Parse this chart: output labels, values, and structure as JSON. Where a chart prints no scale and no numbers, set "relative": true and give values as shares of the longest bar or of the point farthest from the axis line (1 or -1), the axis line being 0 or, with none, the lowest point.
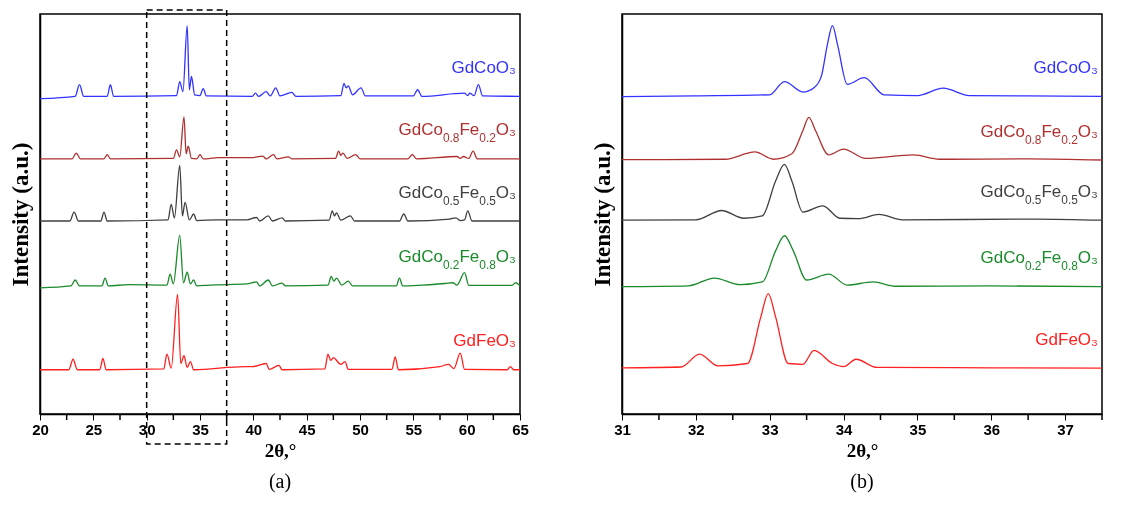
{
  "chart_data": [
    {
      "type": "line",
      "xlabel": "2θ,°",
      "ylabel": "Intensity (a.u.)",
      "relative": true,
      "annotations": [
        "(a)"
      ],
      "legend": false,
      "grid": false,
      "xlim": [
        20,
        65
      ],
      "xticks": [
        20,
        {
          "value": 22.5,
          "label": null
        },
        25,
        {
          "value": 27.5,
          "label": null
        },
        30,
        {
          "value": 32.5,
          "label": null
        },
        35,
        {
          "value": 37.5,
          "label": null
        },
        40,
        {
          "value": 42.5,
          "label": null
        },
        45,
        {
          "value": 47.5,
          "label": null
        },
        50,
        {
          "value": 52.5,
          "label": null
        },
        55,
        {
          "value": 57.5,
          "label": null
        },
        60,
        {
          "value": 62.5,
          "label": null
        },
        65
      ],
      "series": [
        {
          "name": "GdCoO₃",
          "color": "#3333ff",
          "x": [
            20,
            23.3,
            23.7,
            24.1,
            26.3,
            26.6,
            26.9,
            32.8,
            33.1,
            33.4,
            33.8,
            34.0,
            34.2,
            34.5,
            35.0,
            35.3,
            35.6,
            39.9,
            40.2,
            40.5,
            41.2,
            41.6,
            42.1,
            42.5,
            43.6,
            44.0,
            48.2,
            48.5,
            48.7,
            48.9,
            49.3,
            50.1,
            50.5,
            55.0,
            55.4,
            55.8,
            59.8,
            60.1,
            60.3,
            60.7,
            61.1,
            61.5,
            65
          ],
          "values": [
            0.812,
            0.818,
            0.848,
            0.818,
            0.818,
            0.848,
            0.818,
            0.82,
            0.856,
            0.83,
            1.0,
            0.835,
            0.869,
            0.822,
            0.82,
            0.838,
            0.819,
            0.818,
            0.826,
            0.818,
            0.83,
            0.819,
            0.84,
            0.819,
            0.828,
            0.818,
            0.82,
            0.851,
            0.84,
            0.845,
            0.822,
            0.84,
            0.819,
            0.819,
            0.835,
            0.818,
            0.826,
            0.82,
            0.826,
            0.82,
            0.848,
            0.819,
            0.818
          ]
        },
        {
          "name": "GdCo$_{0.8}$Fe$_{0.2}$O₃",
          "color": "#b03030",
          "x": [
            20,
            23.0,
            23.4,
            23.8,
            26.0,
            26.3,
            26.6,
            32.5,
            32.8,
            33.1,
            33.5,
            33.7,
            33.9,
            34.2,
            34.7,
            35.0,
            35.3,
            36.7,
            39.8,
            40.9,
            41.2,
            41.9,
            42.2,
            43.3,
            43.6,
            47.7,
            48.0,
            48.2,
            48.4,
            48.8,
            49.6,
            50.0,
            54.5,
            54.9,
            55.3,
            59.1,
            59.4,
            59.7,
            60.2,
            60.6,
            61.0,
            65
          ],
          "values": [
            0.657,
            0.657,
            0.672,
            0.657,
            0.657,
            0.668,
            0.657,
            0.658,
            0.68,
            0.662,
            0.765,
            0.67,
            0.69,
            0.658,
            0.657,
            0.668,
            0.657,
            0.66,
            0.66,
            0.664,
            0.657,
            0.668,
            0.657,
            0.662,
            0.657,
            0.658,
            0.677,
            0.666,
            0.672,
            0.658,
            0.668,
            0.657,
            0.657,
            0.668,
            0.657,
            0.663,
            0.658,
            0.663,
            0.658,
            0.677,
            0.657,
            0.657
          ]
        },
        {
          "name": "GdCo$_{0.5}$Fe$_{0.5}$O₃",
          "color": "#404040",
          "x": [
            20,
            22.8,
            23.2,
            23.6,
            25.7,
            26.0,
            26.3,
            32.0,
            32.3,
            32.6,
            33.1,
            33.35,
            33.6,
            34.0,
            34.4,
            34.7,
            36.6,
            39.4,
            40.3,
            40.6,
            41.4,
            41.8,
            42.7,
            43.0,
            47.1,
            47.4,
            47.6,
            47.8,
            48.2,
            49.1,
            49.5,
            53.7,
            54.1,
            54.5,
            58.4,
            59.0,
            59.4,
            59.8,
            60.1,
            60.5,
            65
          ],
          "values": [
            0.497,
            0.497,
            0.52,
            0.497,
            0.497,
            0.52,
            0.497,
            0.5,
            0.54,
            0.505,
            0.64,
            0.51,
            0.545,
            0.5,
            0.515,
            0.498,
            0.5,
            0.5,
            0.506,
            0.497,
            0.51,
            0.497,
            0.505,
            0.497,
            0.499,
            0.523,
            0.51,
            0.518,
            0.499,
            0.51,
            0.497,
            0.497,
            0.515,
            0.497,
            0.502,
            0.505,
            0.498,
            0.5,
            0.523,
            0.497,
            0.497
          ]
        },
        {
          "name": "GdCo$_{0.2}$Fe$_{0.8}$O₃",
          "color": "#1a8a2a",
          "x": [
            20,
            22.9,
            23.3,
            23.7,
            25.8,
            26.1,
            26.4,
            28.3,
            31.9,
            32.2,
            32.5,
            33.1,
            33.45,
            33.8,
            34.1,
            34.4,
            34.7,
            35.9,
            39.4,
            40.3,
            40.6,
            41.4,
            41.8,
            42.7,
            43.0,
            47.0,
            47.3,
            47.55,
            47.8,
            48.3,
            48.9,
            49.3,
            53.4,
            53.7,
            54.0,
            55.8,
            58.0,
            58.7,
            59.1,
            59.8,
            60.2,
            64.2,
            64.6,
            65
          ],
          "values": [
            0.325,
            0.33,
            0.345,
            0.33,
            0.33,
            0.35,
            0.33,
            0.333,
            0.332,
            0.36,
            0.335,
            0.46,
            0.338,
            0.365,
            0.335,
            0.345,
            0.33,
            0.332,
            0.335,
            0.34,
            0.33,
            0.345,
            0.33,
            0.337,
            0.33,
            0.332,
            0.354,
            0.342,
            0.35,
            0.332,
            0.342,
            0.33,
            0.33,
            0.35,
            0.33,
            0.332,
            0.336,
            0.338,
            0.332,
            0.364,
            0.331,
            0.331,
            0.338,
            0.33
          ]
        },
        {
          "name": "GdFeO₃",
          "color": "#ff2020",
          "x": [
            20,
            22.7,
            23.1,
            23.5,
            25.6,
            25.9,
            26.2,
            31.6,
            31.9,
            32.3,
            32.9,
            33.2,
            33.5,
            33.8,
            34.1,
            34.4,
            39.2,
            39.9,
            41.2,
            41.5,
            42.4,
            42.7,
            46.7,
            47.0,
            47.25,
            47.5,
            48.2,
            48.6,
            48.9,
            53.0,
            53.3,
            53.6,
            57.5,
            58.3,
            58.8,
            59.4,
            59.8,
            63.8,
            64.1,
            64.4,
            65
          ],
          "values": [
            0.114,
            0.114,
            0.141,
            0.114,
            0.114,
            0.143,
            0.114,
            0.116,
            0.154,
            0.118,
            0.308,
            0.13,
            0.15,
            0.12,
            0.135,
            0.114,
            0.122,
            0.122,
            0.13,
            0.115,
            0.125,
            0.114,
            0.116,
            0.154,
            0.138,
            0.145,
            0.128,
            0.135,
            0.115,
            0.115,
            0.147,
            0.114,
            0.122,
            0.128,
            0.117,
            0.157,
            0.115,
            0.114,
            0.122,
            0.114,
            0.114
          ]
        }
      ]
    },
    {
      "type": "line",
      "xlabel": "2θ,°",
      "ylabel": "Intensity (a.u.)",
      "relative": true,
      "annotations": [
        "(b)"
      ],
      "legend": false,
      "grid": false,
      "xlim": [
        31,
        37.5
      ],
      "xticks": [
        31,
        {
          "value": 31.5,
          "label": null
        },
        32,
        {
          "value": 32.5,
          "label": null
        },
        33,
        {
          "value": 33.5,
          "label": null
        },
        34,
        {
          "value": 34.5,
          "label": null
        },
        35,
        {
          "value": 35.5,
          "label": null
        },
        36,
        {
          "value": 36.5,
          "label": null
        },
        37,
        {
          "value": 37.5,
          "label": null
        }
      ],
      "series": [
        {
          "name": "GdCoO₃",
          "color": "#3333ff",
          "x": [
            31,
            32.0,
            33.0,
            33.2,
            33.45,
            33.6,
            33.7,
            33.78,
            33.85,
            33.92,
            34.05,
            34.28,
            34.55,
            35.0,
            35.35,
            35.7,
            36.5,
            37.5
          ],
          "values": [
            0.817,
            0.819,
            0.822,
            0.856,
            0.829,
            0.84,
            0.87,
            0.95,
            1.0,
            0.95,
            0.849,
            0.866,
            0.822,
            0.82,
            0.839,
            0.82,
            0.819,
            0.818
          ]
        },
        {
          "name": "GdCo$_{0.8}$Fe$_{0.2}$O₃",
          "color": "#b03030",
          "x": [
            31,
            32.4,
            32.8,
            33.05,
            33.3,
            33.45,
            33.53,
            33.62,
            33.8,
            34.0,
            34.3,
            34.95,
            35.3,
            36.5,
            37.5
          ],
          "values": [
            0.655,
            0.656,
            0.675,
            0.656,
            0.67,
            0.73,
            0.764,
            0.73,
            0.667,
            0.682,
            0.658,
            0.667,
            0.656,
            0.657,
            0.654
          ]
        },
        {
          "name": "GdCo$_{0.5}$Fe$_{0.5}$O₃",
          "color": "#404040",
          "x": [
            31,
            32.0,
            32.35,
            32.65,
            32.9,
            33.08,
            33.2,
            33.3,
            33.45,
            33.72,
            33.95,
            34.2,
            34.48,
            34.8,
            36.6,
            37.5
          ],
          "values": [
            0.499,
            0.5,
            0.524,
            0.504,
            0.51,
            0.6,
            0.643,
            0.6,
            0.52,
            0.536,
            0.504,
            0.503,
            0.514,
            0.5,
            0.502,
            0.499
          ]
        },
        {
          "name": "GdCo$_{0.2}$Fe$_{0.8}$O₃",
          "color": "#1a8a2a",
          "x": [
            31,
            31.9,
            32.25,
            32.6,
            32.9,
            33.08,
            33.2,
            33.32,
            33.5,
            33.8,
            34.05,
            34.4,
            34.7,
            36.0,
            37.5
          ],
          "values": [
            0.328,
            0.33,
            0.35,
            0.333,
            0.34,
            0.42,
            0.459,
            0.42,
            0.345,
            0.36,
            0.332,
            0.34,
            0.329,
            0.33,
            0.328
          ]
        },
        {
          "name": "GdFeO₃",
          "color": "#ff2020",
          "x": [
            31,
            31.8,
            32.05,
            32.3,
            32.7,
            32.88,
            32.98,
            33.08,
            33.25,
            33.45,
            33.6,
            33.85,
            34.0,
            34.17,
            34.45,
            36.0,
            37.5
          ],
          "values": [
            0.119,
            0.121,
            0.154,
            0.124,
            0.13,
            0.25,
            0.31,
            0.25,
            0.13,
            0.128,
            0.164,
            0.13,
            0.122,
            0.141,
            0.12,
            0.119,
            0.118
          ]
        }
      ]
    }
  ]
}
